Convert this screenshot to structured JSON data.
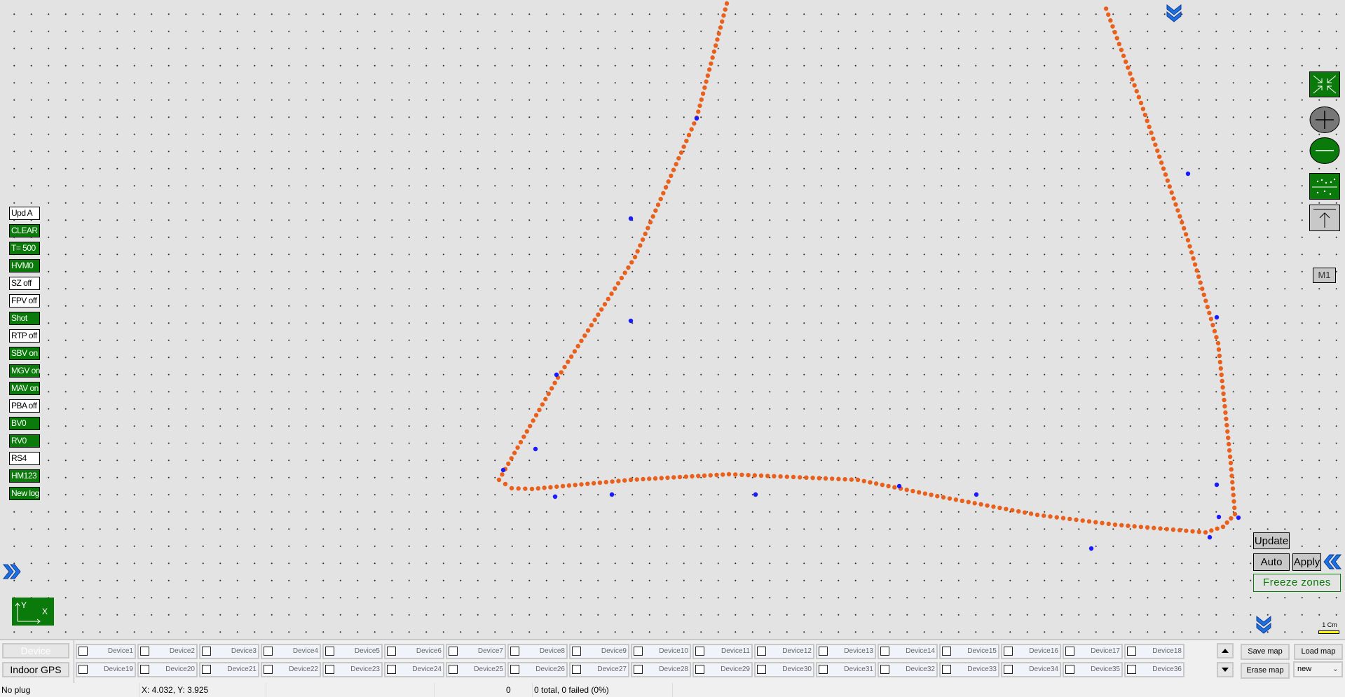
{
  "left_buttons": [
    {
      "label": "Upd A",
      "active": false
    },
    {
      "label": "CLEAR",
      "active": true
    },
    {
      "label": "T= 500",
      "active": true
    },
    {
      "label": "HVM0",
      "active": true
    },
    {
      "label": "SZ off",
      "active": false
    },
    {
      "label": "FPV off",
      "active": false
    },
    {
      "label": "Shot",
      "active": true
    },
    {
      "label": "RTP off",
      "active": false
    },
    {
      "label": "SBV on",
      "active": true
    },
    {
      "label": "MGV on",
      "active": true
    },
    {
      "label": "MAV on",
      "active": true
    },
    {
      "label": "PBA off",
      "active": false
    },
    {
      "label": "BV0",
      "active": true
    },
    {
      "label": "RV0",
      "active": true
    },
    {
      "label": "RS4",
      "active": false
    },
    {
      "label": "HM123",
      "active": true
    },
    {
      "label": "New log",
      "active": true
    }
  ],
  "right_tools": {
    "fit": "compress-arrows-icon",
    "zoom_in": "zoom-in-icon",
    "zoom_out": "zoom-out-icon",
    "points": "scatter-icon",
    "up": "arrow-up-icon",
    "m1_label": "M1"
  },
  "zone_controls": {
    "update": "Update",
    "auto": "Auto",
    "apply": "Apply",
    "freeze": "Freeze zones"
  },
  "scale": {
    "label": "1 Cm",
    "color": "#ffff00"
  },
  "axis_icon": {
    "y": "Y",
    "x": "X"
  },
  "colors": {
    "track": "#e8601c",
    "anchors": "#1a1aff",
    "active_button": "#0a7a0a"
  },
  "bottom": {
    "device_button": "Device",
    "indoor_gps_button": "Indoor GPS",
    "devices": [
      "Device1",
      "Device2",
      "Device3",
      "Device4",
      "Device5",
      "Device6",
      "Device7",
      "Device8",
      "Device9",
      "Device10",
      "Device11",
      "Device12",
      "Device13",
      "Device14",
      "Device15",
      "Device16",
      "Device17",
      "Device18",
      "Device19",
      "Device20",
      "Device21",
      "Device22",
      "Device23",
      "Device24",
      "Device25",
      "Device26",
      "Device27",
      "Device28",
      "Device29",
      "Device30",
      "Device31",
      "Device32",
      "Device33",
      "Device34",
      "Device35",
      "Device36"
    ],
    "save_map": "Save map",
    "load_map": "Load map",
    "erase_map": "Erase map",
    "map_select": "new"
  },
  "status": {
    "plug": "No plug",
    "coords": "X: 4.032, Y: 3.925",
    "count": "0",
    "summary": "0 total, 0 failed (0%)"
  }
}
